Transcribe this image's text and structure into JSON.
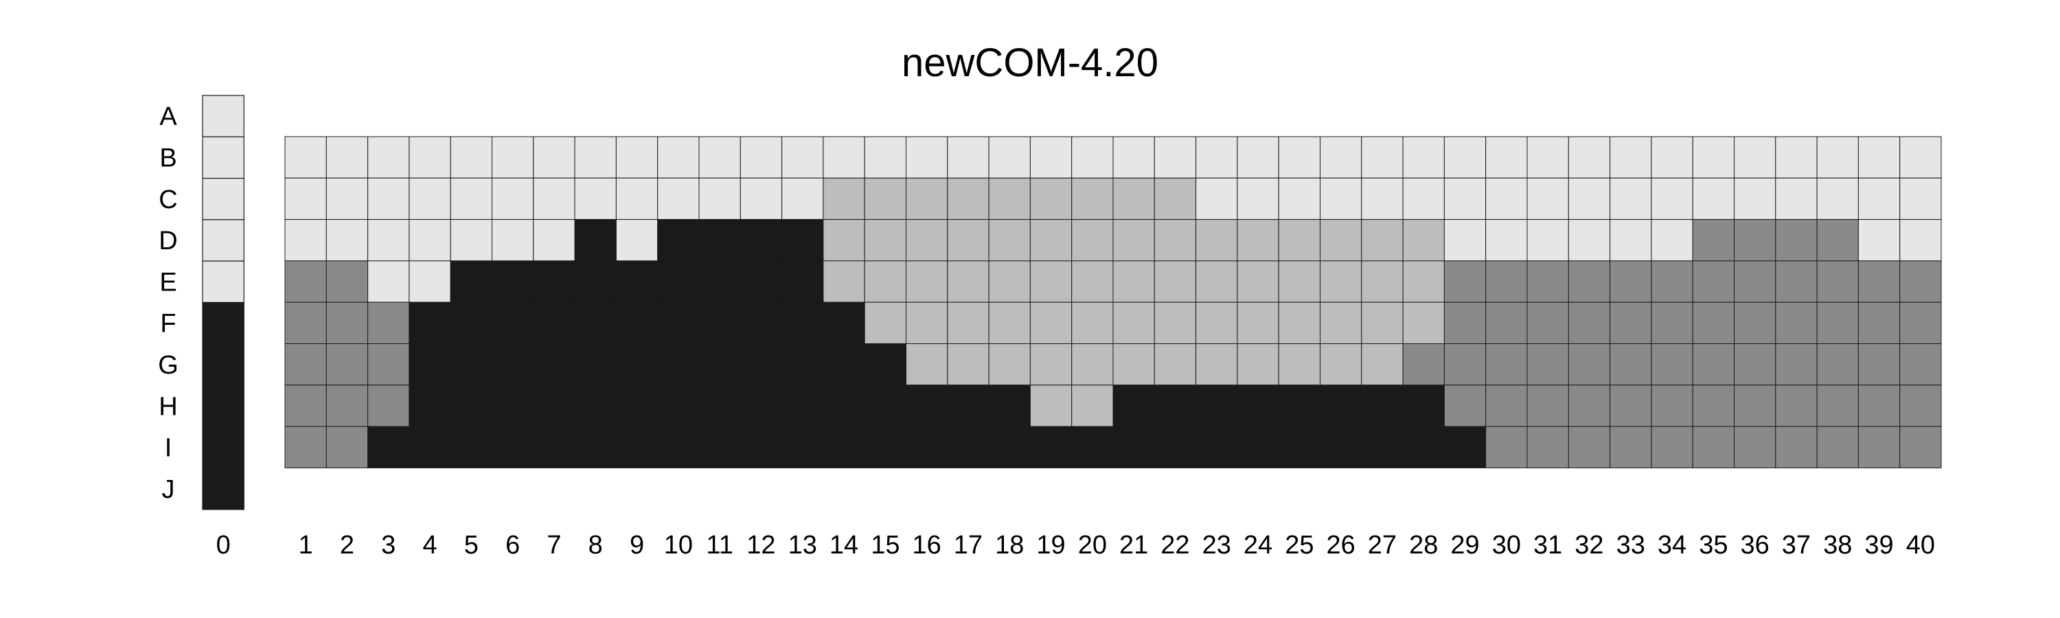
{
  "chart_data": {
    "type": "heatmap",
    "title": "newCOM-4.20",
    "xlabel": "",
    "ylabel": "",
    "rows": [
      "A",
      "B",
      "C",
      "D",
      "E",
      "F",
      "G",
      "H",
      "I",
      "J"
    ],
    "key_column": {
      "label": "0",
      "levels": [
        1,
        1,
        1,
        1,
        1,
        4,
        4,
        4,
        4,
        4
      ]
    },
    "columns": [
      "1",
      "2",
      "3",
      "4",
      "5",
      "6",
      "7",
      "8",
      "9",
      "10",
      "11",
      "12",
      "13",
      "14",
      "15",
      "16",
      "17",
      "18",
      "19",
      "20",
      "21",
      "22",
      "23",
      "24",
      "25",
      "26",
      "27",
      "28",
      "29",
      "30",
      "31",
      "32",
      "33",
      "34",
      "35",
      "36",
      "37",
      "38",
      "39",
      "40"
    ],
    "grid_rows": [
      "B",
      "C",
      "D",
      "E",
      "F",
      "G",
      "H",
      "I"
    ],
    "level_colors": {
      "1": "#e6e6e6",
      "2": "#bdbdbd",
      "3": "#8a8a8a",
      "4": "#1a1a1a"
    },
    "levels": [
      [
        1,
        1,
        1,
        1,
        1,
        1,
        1,
        1,
        1,
        1,
        1,
        1,
        1,
        1,
        1,
        1,
        1,
        1,
        1,
        1,
        1,
        1,
        1,
        1,
        1,
        1,
        1,
        1,
        1,
        1,
        1,
        1,
        1,
        1,
        1,
        1,
        1,
        1,
        1,
        1
      ],
      [
        1,
        1,
        1,
        1,
        1,
        1,
        1,
        1,
        1,
        1,
        1,
        1,
        1,
        2,
        2,
        2,
        2,
        2,
        2,
        2,
        2,
        2,
        1,
        1,
        1,
        1,
        1,
        1,
        1,
        1,
        1,
        1,
        1,
        1,
        1,
        1,
        1,
        1,
        1,
        1
      ],
      [
        1,
        1,
        1,
        1,
        1,
        1,
        1,
        4,
        1,
        4,
        4,
        4,
        4,
        2,
        2,
        2,
        2,
        2,
        2,
        2,
        2,
        2,
        2,
        2,
        2,
        2,
        2,
        2,
        1,
        1,
        1,
        1,
        1,
        1,
        3,
        3,
        3,
        3,
        1,
        1
      ],
      [
        3,
        3,
        1,
        1,
        4,
        4,
        4,
        4,
        4,
        4,
        4,
        4,
        4,
        2,
        2,
        2,
        2,
        2,
        2,
        2,
        2,
        2,
        2,
        2,
        2,
        2,
        2,
        2,
        3,
        3,
        3,
        3,
        3,
        3,
        3,
        3,
        3,
        3,
        3,
        3
      ],
      [
        3,
        3,
        3,
        4,
        4,
        4,
        4,
        4,
        4,
        4,
        4,
        4,
        4,
        4,
        2,
        2,
        2,
        2,
        2,
        2,
        2,
        2,
        2,
        2,
        2,
        2,
        2,
        2,
        3,
        3,
        3,
        3,
        3,
        3,
        3,
        3,
        3,
        3,
        3,
        3
      ],
      [
        3,
        3,
        3,
        4,
        4,
        4,
        4,
        4,
        4,
        4,
        4,
        4,
        4,
        4,
        4,
        2,
        2,
        2,
        2,
        2,
        2,
        2,
        2,
        2,
        2,
        2,
        2,
        3,
        3,
        3,
        3,
        3,
        3,
        3,
        3,
        3,
        3,
        3,
        3,
        3
      ],
      [
        3,
        3,
        3,
        4,
        4,
        4,
        4,
        4,
        4,
        4,
        4,
        4,
        4,
        4,
        4,
        4,
        4,
        4,
        2,
        2,
        4,
        4,
        4,
        4,
        4,
        4,
        4,
        4,
        3,
        3,
        3,
        3,
        3,
        3,
        3,
        3,
        3,
        3,
        3,
        3
      ],
      [
        3,
        3,
        4,
        4,
        4,
        4,
        4,
        4,
        4,
        4,
        4,
        4,
        4,
        4,
        4,
        4,
        4,
        4,
        4,
        4,
        4,
        4,
        4,
        4,
        4,
        4,
        4,
        4,
        4,
        3,
        3,
        3,
        3,
        3,
        3,
        3,
        3,
        3,
        3,
        3
      ]
    ]
  }
}
